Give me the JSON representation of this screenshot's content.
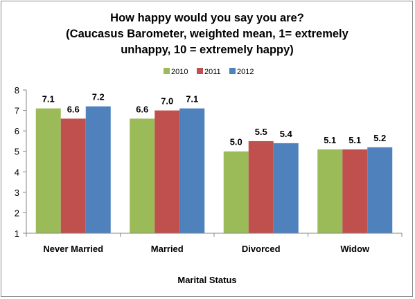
{
  "chart_data": {
    "type": "bar",
    "title_lines": [
      "How happy would you say you are?",
      "(Caucasus Barometer, weighted mean, 1= extremely",
      "unhappy, 10 = extremely happy)"
    ],
    "xlabel": "Marital Status",
    "ylabel": "",
    "ylim": [
      1,
      8
    ],
    "yticks": [
      "1",
      "2",
      "3",
      "4",
      "5",
      "6",
      "7",
      "8"
    ],
    "grid": false,
    "legend_position": "top",
    "categories": [
      "Never Married",
      "Married",
      "Divorced",
      "Widow"
    ],
    "series": [
      {
        "name": "2010",
        "color": "#9BBB59",
        "values": [
          7.1,
          6.6,
          5.0,
          5.1
        ],
        "labels": [
          "7.1",
          "6.6",
          "5.0",
          "5.1"
        ]
      },
      {
        "name": "2011",
        "color": "#C0504D",
        "values": [
          6.6,
          7.0,
          5.5,
          5.1
        ],
        "labels": [
          "6.6",
          "7.0",
          "5.5",
          "5.1"
        ]
      },
      {
        "name": "2012",
        "color": "#4F81BD",
        "values": [
          7.2,
          7.1,
          5.4,
          5.2
        ],
        "labels": [
          "7.2",
          "7.1",
          "5.4",
          "5.2"
        ]
      }
    ]
  }
}
